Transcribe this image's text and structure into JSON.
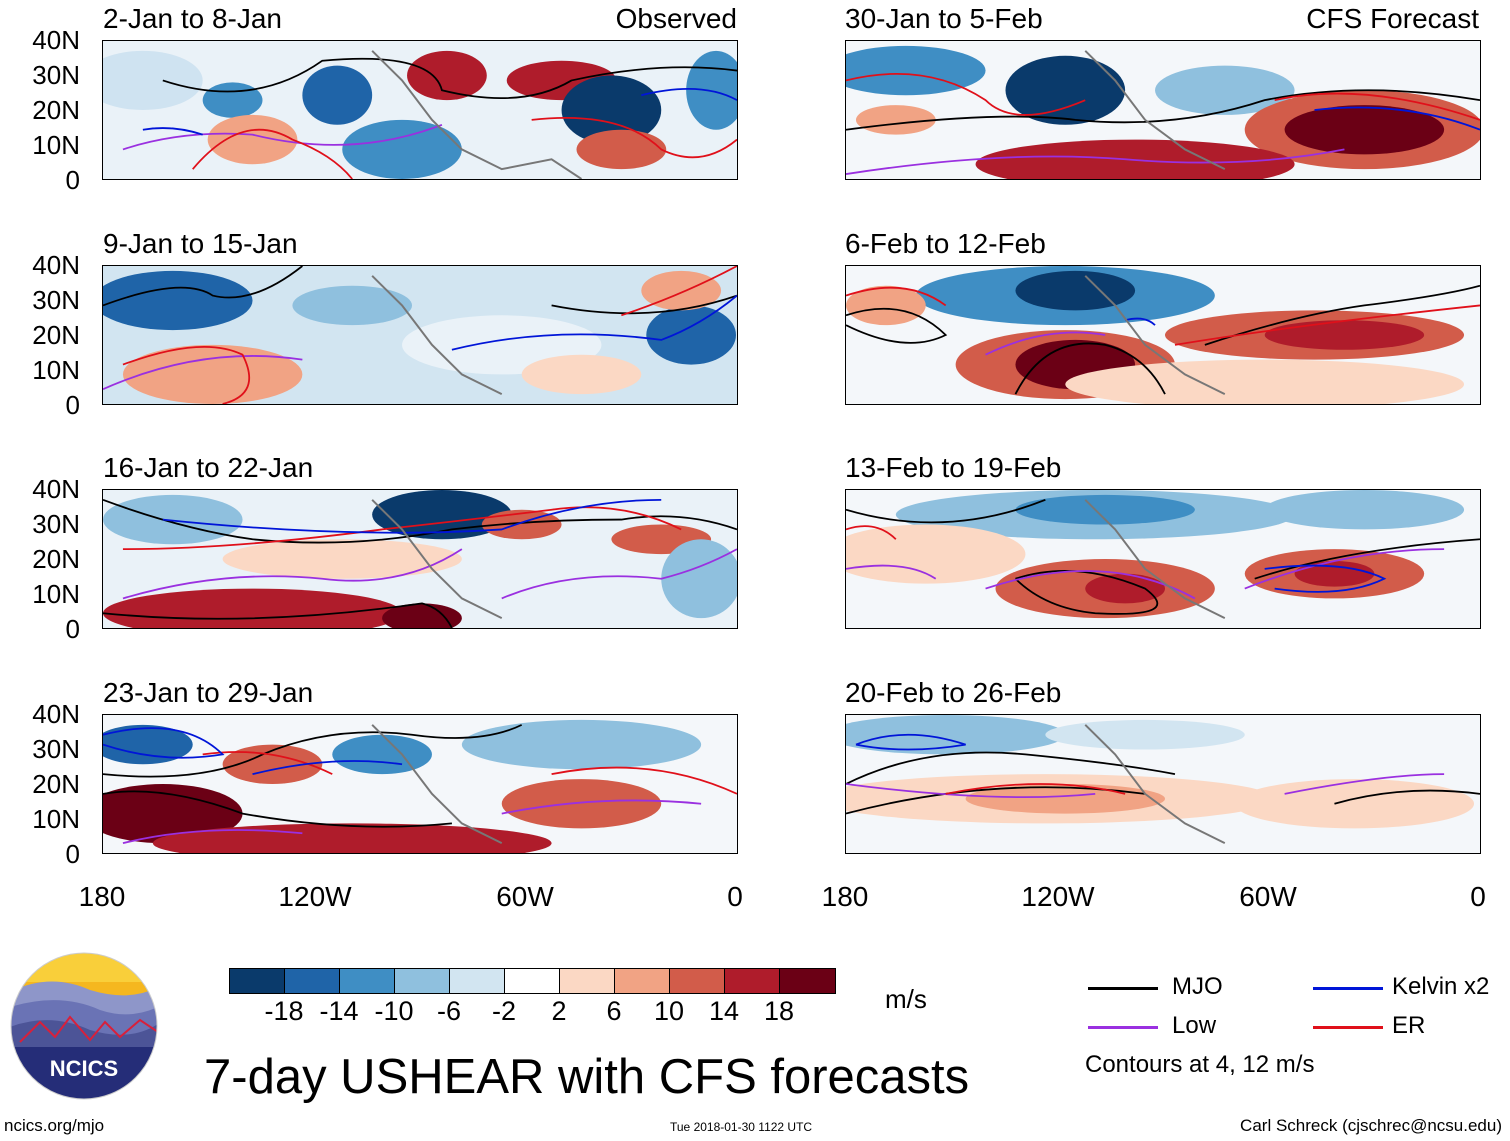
{
  "panels": [
    {
      "title": "2-Jan to 8-Jan",
      "label": "Observed"
    },
    {
      "title": "30-Jan to 5-Feb",
      "label": "CFS Forecast"
    },
    {
      "title": "9-Jan to 15-Jan",
      "label": ""
    },
    {
      "title": "6-Feb to 12-Feb",
      "label": ""
    },
    {
      "title": "16-Jan to 22-Jan",
      "label": ""
    },
    {
      "title": "13-Feb to 19-Feb",
      "label": ""
    },
    {
      "title": "23-Jan to 29-Jan",
      "label": ""
    },
    {
      "title": "20-Feb to 26-Feb",
      "label": ""
    }
  ],
  "y_axis": {
    "ticks": [
      "40N",
      "30N",
      "20N",
      "10N",
      "0"
    ]
  },
  "x_axis": {
    "ticks": [
      "180",
      "120W",
      "60W",
      "0"
    ]
  },
  "colorbar": {
    "labels": [
      "-18",
      "-14",
      "-10",
      "-6",
      "-2",
      "2",
      "6",
      "10",
      "14",
      "18"
    ],
    "colors": [
      "#0a3a6b",
      "#1f64a8",
      "#3f8ec4",
      "#8fc0de",
      "#d2e5f1",
      "#ffffff",
      "#fbd8c4",
      "#f1a384",
      "#d25c4a",
      "#af1c2b",
      "#6b0015"
    ],
    "units": "m/s"
  },
  "legend": {
    "items": [
      {
        "name": "MJO",
        "color": "#000000"
      },
      {
        "name": "Kelvin x2",
        "color": "#0015d8"
      },
      {
        "name": "Low",
        "color": "#9a30e0"
      },
      {
        "name": "ER",
        "color": "#e0101a"
      }
    ],
    "note": "Contours at 4, 12 m/s"
  },
  "logo": {
    "text": "NCICS"
  },
  "main_title": "7-day USHEAR with CFS forecasts",
  "footer": {
    "left": "ncics.org/mjo",
    "center": "Tue 2018-01-30 1122 UTC",
    "right": "Carl Schreck (cjschrec@ncsu.edu)"
  }
}
